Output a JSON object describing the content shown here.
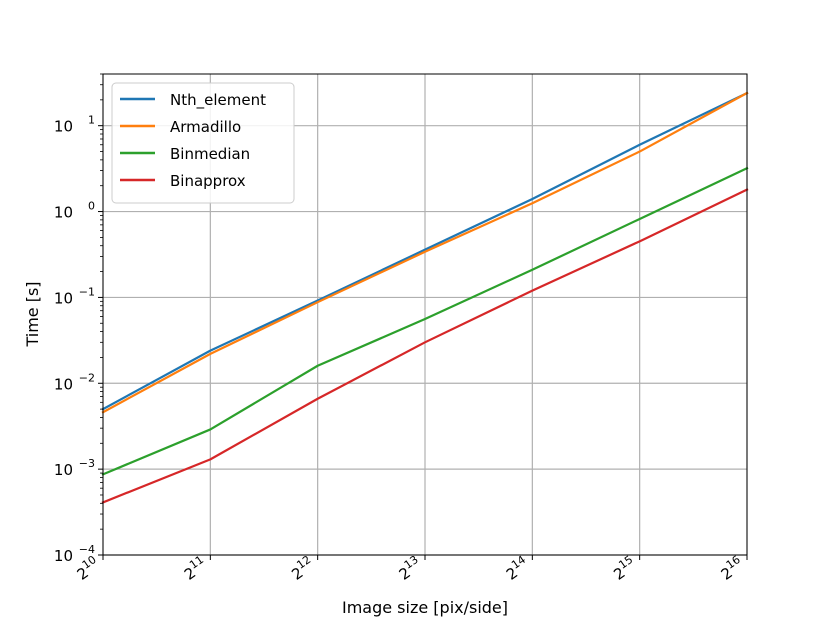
{
  "chart_data": {
    "type": "line",
    "xlabel": "Image size [pix/side]",
    "ylabel": "Time [s]",
    "x_scale": "log2",
    "y_scale": "log10",
    "x": [
      1024,
      2048,
      4096,
      8192,
      16384,
      32768,
      65536
    ],
    "xlim": [
      1024,
      65536
    ],
    "ylim": [
      0.0001,
      40
    ],
    "x_ticks": [
      {
        "base": "2",
        "exp": "10"
      },
      {
        "base": "2",
        "exp": "11"
      },
      {
        "base": "2",
        "exp": "12"
      },
      {
        "base": "2",
        "exp": "13"
      },
      {
        "base": "2",
        "exp": "14"
      },
      {
        "base": "2",
        "exp": "15"
      },
      {
        "base": "2",
        "exp": "16"
      }
    ],
    "y_ticks": [
      {
        "base": "10",
        "exp": "−4"
      },
      {
        "base": "10",
        "exp": "−3"
      },
      {
        "base": "10",
        "exp": "−2"
      },
      {
        "base": "10",
        "exp": "−1"
      },
      {
        "base": "10",
        "exp": "0"
      },
      {
        "base": "10",
        "exp": "1"
      }
    ],
    "grid": true,
    "legend": "top-left",
    "series": [
      {
        "name": "Nth_element",
        "color": "#1f77b4",
        "values": [
          0.005,
          0.024,
          0.092,
          0.36,
          1.4,
          6.0,
          24.0
        ]
      },
      {
        "name": "Armadillo",
        "color": "#ff7f0e",
        "values": [
          0.0046,
          0.022,
          0.088,
          0.34,
          1.25,
          5.0,
          24.0
        ]
      },
      {
        "name": "Binmedian",
        "color": "#2ca02c",
        "values": [
          0.00087,
          0.0029,
          0.016,
          0.056,
          0.21,
          0.82,
          3.2
        ]
      },
      {
        "name": "Binapprox",
        "color": "#d62728",
        "values": [
          0.00041,
          0.0013,
          0.0066,
          0.03,
          0.12,
          0.45,
          1.8
        ]
      }
    ]
  }
}
